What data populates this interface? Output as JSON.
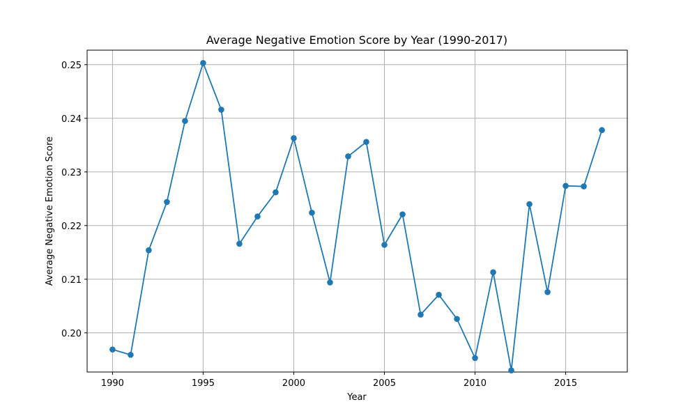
{
  "chart_data": {
    "type": "line",
    "title": "Average Negative Emotion Score by Year (1990-2017)",
    "xlabel": "Year",
    "ylabel": "Average Negative Emotion Score",
    "xlim": [
      1988.6,
      2018.4
    ],
    "ylim": [
      0.1927,
      0.2527
    ],
    "x_ticks": [
      1990,
      1995,
      2000,
      2005,
      2010,
      2015
    ],
    "y_ticks": [
      0.2,
      0.21,
      0.22,
      0.23,
      0.24,
      0.25
    ],
    "y_tick_labels": [
      "0.20",
      "0.21",
      "0.22",
      "0.23",
      "0.24",
      "0.25"
    ],
    "grid": true,
    "line_color": "#1f77b4",
    "marker": "circle",
    "series": [
      {
        "x": [
          1990,
          1991,
          1992,
          1993,
          1994,
          1995,
          1996,
          1997,
          1998,
          1999,
          2000,
          2001,
          2002,
          2003,
          2004,
          2005,
          2006,
          2007,
          2008,
          2009,
          2010,
          2011,
          2012,
          2013,
          2014,
          2015,
          2016,
          2017
        ],
        "values": [
          0.1969,
          0.1959,
          0.2154,
          0.2244,
          0.2395,
          0.2503,
          0.2416,
          0.2166,
          0.2217,
          0.2262,
          0.2363,
          0.2224,
          0.2094,
          0.2329,
          0.2356,
          0.2164,
          0.2221,
          0.2034,
          0.2071,
          0.2026,
          0.1953,
          0.2113,
          0.193,
          0.224,
          0.2076,
          0.2274,
          0.2273,
          0.2378
        ]
      }
    ]
  }
}
